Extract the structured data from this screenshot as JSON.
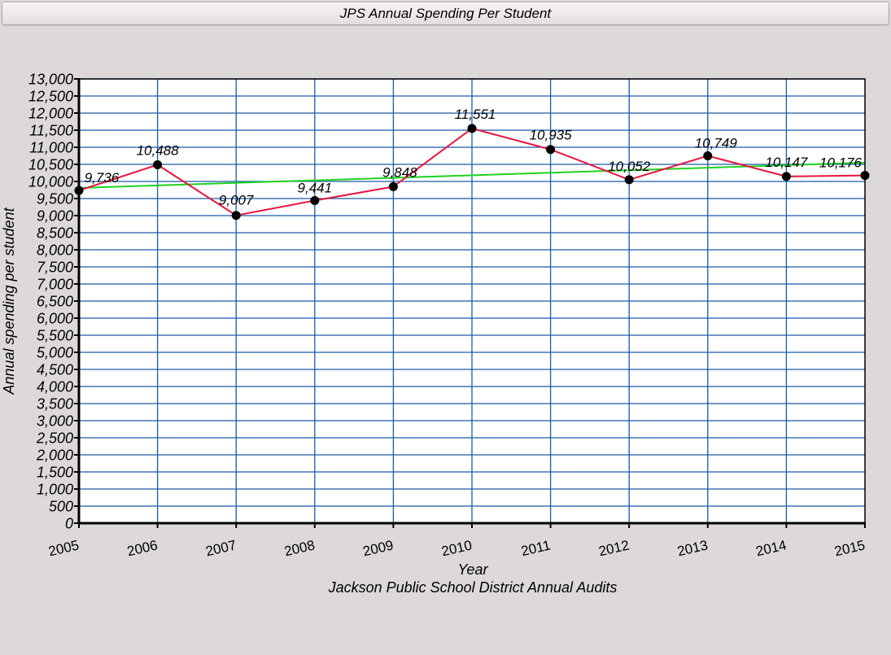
{
  "window": {
    "title": "JPS Annual Spending Per Student"
  },
  "chart_data": {
    "type": "line",
    "title": "JPS Annual Spending Per Student",
    "xlabel": "Year",
    "subtitle": "Jackson Public School District Annual Audits",
    "ylabel": "Annual spending per student",
    "x": [
      2005,
      2006,
      2007,
      2008,
      2009,
      2010,
      2011,
      2012,
      2013,
      2014,
      2015
    ],
    "categories": [
      "2005",
      "2006",
      "2007",
      "2008",
      "2009",
      "2010",
      "2011",
      "2012",
      "2013",
      "2014",
      "2015"
    ],
    "series": [
      {
        "name": "Spending per student",
        "color": "#e8163c",
        "marker": "circle",
        "values": [
          9736,
          10488,
          9007,
          9441,
          9848,
          11551,
          10935,
          10052,
          10749,
          10147,
          10176
        ],
        "labels": [
          "9,736",
          "10,488",
          "9,007",
          "9,441",
          "9,848",
          "11,551",
          "10,935",
          "10,052",
          "10,749",
          "10,147",
          "10,176"
        ]
      },
      {
        "name": "Trend line",
        "color": "#1ed31e",
        "type": "linear-trend",
        "values": [
          9810,
          10550
        ]
      }
    ],
    "ylim": [
      0,
      13000
    ],
    "xlim": [
      2005,
      2015
    ],
    "yticks": [
      0,
      500,
      1000,
      1500,
      2000,
      2500,
      3000,
      3500,
      4000,
      4500,
      5000,
      5500,
      6000,
      6500,
      7000,
      7500,
      8000,
      8500,
      9000,
      9500,
      10000,
      10500,
      11000,
      11500,
      12000,
      12500,
      13000
    ],
    "ytick_labels": [
      "0",
      "500",
      "1,000",
      "1,500",
      "2,000",
      "2,500",
      "3,000",
      "3,500",
      "4,000",
      "4,500",
      "5,000",
      "5,500",
      "6,000",
      "6,500",
      "7,000",
      "7,500",
      "8,000",
      "8,500",
      "9,000",
      "9,500",
      "10,000",
      "10,500",
      "11,000",
      "11,500",
      "12,000",
      "12,500",
      "13,000"
    ],
    "grid": true,
    "grid_color": "#1a5aa8",
    "legend": null
  }
}
